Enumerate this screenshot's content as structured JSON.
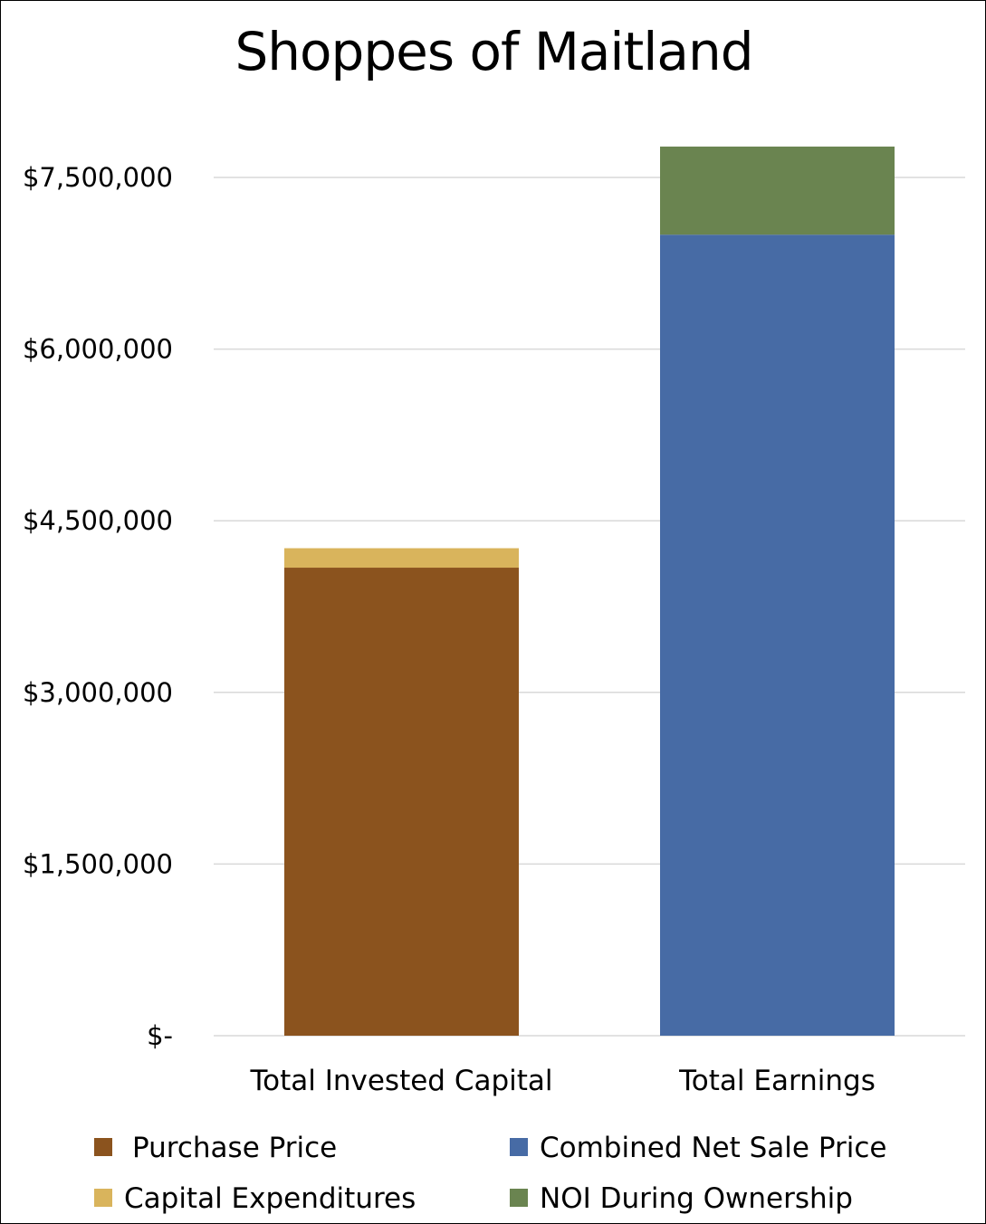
{
  "chart_data": {
    "type": "bar",
    "stacked": true,
    "title": "Shoppes of Maitland",
    "categories": [
      "Total Invested Capital",
      "Total Earnings"
    ],
    "ylim": [
      0,
      7500000
    ],
    "yticks": [
      {
        "value": 0,
        "label": "$-"
      },
      {
        "value": 1500000,
        "label": "$1,500,000"
      },
      {
        "value": 3000000,
        "label": "$3,000,000"
      },
      {
        "value": 4500000,
        "label": "$4,500,000"
      },
      {
        "value": 6000000,
        "label": "$6,000,000"
      },
      {
        "value": 7500000,
        "label": "$7,500,000"
      }
    ],
    "grid": true,
    "legend_position": "bottom",
    "series": [
      {
        "name": "Purchase Price",
        "color": "#8B531E",
        "values": [
          4090000,
          0
        ]
      },
      {
        "name": "Capital Expenditures",
        "color": "#D9B45C",
        "values": [
          170000,
          0
        ]
      },
      {
        "name": "Combined Net Sale Price",
        "color": "#476BA5",
        "values": [
          0,
          7000000
        ]
      },
      {
        "name": "NOI During Ownership",
        "color": "#6A8450",
        "values": [
          0,
          770000
        ]
      }
    ]
  }
}
